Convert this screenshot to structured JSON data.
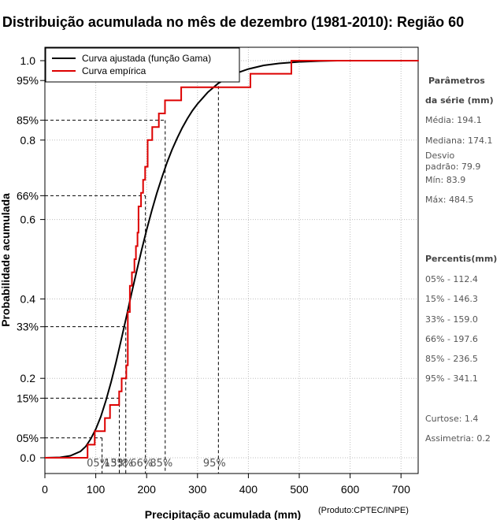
{
  "chart_data": {
    "type": "line",
    "title": "Distribuição acumulada no mês de dezembro (1981-2010): Região 60",
    "xlabel": "Precipitação acumulada (mm)",
    "ylabel": "Probabilidade acumulada",
    "credit": "(Produto:CPTEC/INPE)",
    "xlim": [
      0,
      735
    ],
    "ylim": [
      0,
      1
    ],
    "x_ticks": [
      "0",
      "100",
      "200",
      "300",
      "400",
      "500",
      "600",
      "700"
    ],
    "y_ticks": [
      {
        "v": 0.0,
        "label": "0.0"
      },
      {
        "v": 0.2,
        "label": "0.2"
      },
      {
        "v": 0.4,
        "label": "0.4"
      },
      {
        "v": 0.6,
        "label": "0.6"
      },
      {
        "v": 0.8,
        "label": "0.8"
      },
      {
        "v": 1.0,
        "label": "1.0"
      }
    ],
    "percentile_ticks": [
      {
        "p": 0.05,
        "label": "05%",
        "value": 112.4
      },
      {
        "p": 0.15,
        "label": "15%",
        "value": 146.3
      },
      {
        "p": 0.33,
        "label": "33%",
        "value": 159.0
      },
      {
        "p": 0.66,
        "label": "66%",
        "value": 197.6
      },
      {
        "p": 0.85,
        "label": "85%",
        "value": 236.5
      },
      {
        "p": 0.95,
        "label": "95%",
        "value": 341.1
      }
    ],
    "legend": {
      "position": "top-left",
      "entries": [
        "Curva ajustada (função Gama)",
        "Curva empírica"
      ]
    },
    "series": [
      {
        "name": "Curva ajustada (função Gama)",
        "color": "#000000",
        "x": [
          0,
          30,
          50,
          70,
          80,
          90,
          100,
          110,
          120,
          130,
          140,
          150,
          160,
          170,
          180,
          190,
          200,
          210,
          220,
          230,
          240,
          250,
          260,
          270,
          280,
          290,
          300,
          320,
          340,
          360,
          380,
          400,
          430,
          460,
          500,
          540,
          575
        ],
        "y": [
          0,
          0.001,
          0.005,
          0.016,
          0.028,
          0.047,
          0.072,
          0.104,
          0.144,
          0.19,
          0.241,
          0.297,
          0.354,
          0.412,
          0.468,
          0.522,
          0.574,
          0.622,
          0.666,
          0.706,
          0.743,
          0.776,
          0.805,
          0.831,
          0.854,
          0.874,
          0.891,
          0.92,
          0.942,
          0.958,
          0.97,
          0.979,
          0.988,
          0.993,
          0.997,
          0.999,
          1.0
        ]
      },
      {
        "name": "Curva empírica",
        "color": "#dd0000",
        "x": [
          0,
          83.9,
          98,
          118,
          128,
          146,
          151,
          160,
          163,
          167,
          171,
          176,
          179,
          182,
          184,
          189,
          193,
          197,
          202,
          211,
          224,
          236,
          268,
          318,
          404,
          484.5,
          735
        ],
        "y": [
          0,
          0.033,
          0.067,
          0.1,
          0.133,
          0.167,
          0.2,
          0.233,
          0.367,
          0.433,
          0.467,
          0.5,
          0.533,
          0.567,
          0.633,
          0.667,
          0.7,
          0.733,
          0.8,
          0.833,
          0.867,
          0.9,
          0.933,
          0.933,
          0.967,
          1.0,
          1.0
        ]
      }
    ]
  },
  "sidebar": {
    "params_title_1": "Parâmetros",
    "params_title_2": "da série (mm)",
    "media": "Média: 194.1",
    "mediana": "Mediana: 174.1",
    "desvio_1": "Desvio",
    "desvio_2": "padrão: 79.9",
    "min": "Mín: 83.9",
    "max": "Máx: 484.5",
    "percentis_title": "Percentis(mm)",
    "p05": "05% - 112.4",
    "p15": "15% - 146.3",
    "p33": "33% - 159.0",
    "p66": "66% - 197.6",
    "p85": "85% - 236.5",
    "p95": "95% - 341.1",
    "curtose": "Curtose: 1.4",
    "assimetria": "Assimetria: 0.2"
  }
}
